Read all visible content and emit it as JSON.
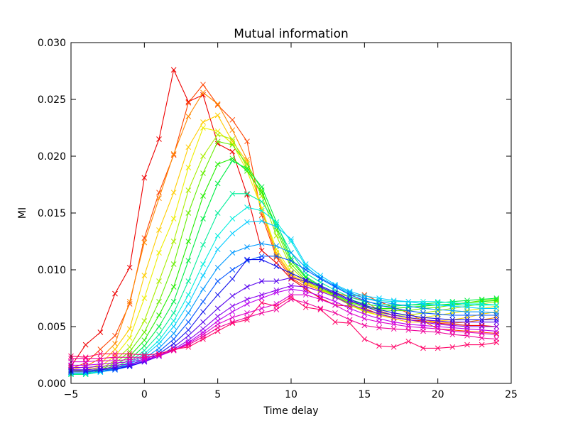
{
  "chart_data": {
    "type": "line",
    "title": "Mutual information",
    "xlabel": "Time delay",
    "ylabel": "MI",
    "xlim": [
      -5,
      25
    ],
    "ylim": [
      0,
      0.03
    ],
    "xticks": [
      -5,
      0,
      5,
      10,
      15,
      20,
      25
    ],
    "xtick_labels": [
      "−5",
      "0",
      "5",
      "10",
      "15",
      "20",
      "25"
    ],
    "yticks": [
      0,
      0.005,
      0.01,
      0.015,
      0.02,
      0.025,
      0.03
    ],
    "ytick_labels": [
      "0.000",
      "0.005",
      "0.010",
      "0.015",
      "0.020",
      "0.025",
      "0.030"
    ],
    "grid": false,
    "marker": "x",
    "x": [
      -5,
      -4,
      -3,
      -2,
      -1,
      0,
      1,
      2,
      3,
      4,
      5,
      6,
      7,
      8,
      9,
      10,
      11,
      12,
      13,
      14,
      15,
      16,
      17,
      18,
      19,
      20,
      21,
      22,
      23,
      24
    ],
    "series": [
      {
        "color": "#ee0000",
        "values": [
          0.0015,
          0.0034,
          0.0045,
          0.0079,
          0.0102,
          0.0181,
          0.0215,
          0.0276,
          0.0248,
          0.0254,
          0.0211,
          0.0204,
          0.0166,
          0.0117,
          0.0106,
          0.0092,
          0.0083,
          0.0075,
          0.0069,
          0.0068,
          0.0066,
          0.0061,
          0.0058,
          0.0056,
          0.0055,
          0.0053,
          0.0052,
          0.0051,
          0.0051,
          0.005
        ]
      },
      {
        "color": "#ff4400",
        "values": [
          0.0013,
          0.0018,
          0.003,
          0.0042,
          0.007,
          0.0128,
          0.0168,
          0.0201,
          0.0247,
          0.0263,
          0.0245,
          0.0232,
          0.0213,
          0.0148,
          0.0111,
          0.0093,
          0.0085,
          0.0081,
          0.0079,
          0.0077,
          0.0078,
          0.0072,
          0.0067,
          0.0062,
          0.0055,
          0.0048,
          0.0047,
          0.0046,
          0.0045,
          0.0044
        ]
      },
      {
        "color": "#ff8800",
        "values": [
          0.0012,
          0.0015,
          0.0022,
          0.0035,
          0.0072,
          0.0124,
          0.0163,
          0.0202,
          0.0235,
          0.0256,
          0.0246,
          0.0223,
          0.0197,
          0.0152,
          0.0113,
          0.0095,
          0.0087,
          0.0082,
          0.008,
          0.0076,
          0.0073,
          0.0064,
          0.006,
          0.0058,
          0.0056,
          0.0054,
          0.0053,
          0.0054,
          0.0056,
          0.0058
        ]
      },
      {
        "color": "#ffcc00",
        "values": [
          0.0011,
          0.0012,
          0.0017,
          0.003,
          0.0048,
          0.0095,
          0.0135,
          0.0168,
          0.0208,
          0.023,
          0.0236,
          0.0213,
          0.0195,
          0.0154,
          0.0115,
          0.0096,
          0.0088,
          0.0082,
          0.0077,
          0.007,
          0.0064,
          0.006,
          0.0057,
          0.0054,
          0.0054,
          0.0055,
          0.0056,
          0.0058,
          0.0061,
          0.0063
        ]
      },
      {
        "color": "#eeee00",
        "values": [
          0.001,
          0.0011,
          0.0015,
          0.0024,
          0.004,
          0.0075,
          0.0115,
          0.0145,
          0.019,
          0.0225,
          0.0222,
          0.0211,
          0.0187,
          0.0154,
          0.0118,
          0.0098,
          0.0089,
          0.0083,
          0.0077,
          0.0069,
          0.0063,
          0.006,
          0.0058,
          0.0057,
          0.0058,
          0.006,
          0.0062,
          0.0064,
          0.0066,
          0.0068
        ]
      },
      {
        "color": "#aaee00",
        "values": [
          0.001,
          0.001,
          0.0013,
          0.002,
          0.0032,
          0.0055,
          0.009,
          0.0125,
          0.017,
          0.02,
          0.0219,
          0.0215,
          0.019,
          0.0165,
          0.013,
          0.0102,
          0.009,
          0.0083,
          0.0076,
          0.0069,
          0.0064,
          0.0062,
          0.006,
          0.006,
          0.0062,
          0.0064,
          0.0066,
          0.0068,
          0.007,
          0.0072
        ]
      },
      {
        "color": "#66ee00",
        "values": [
          0.0009,
          0.0009,
          0.0012,
          0.0018,
          0.0028,
          0.0045,
          0.0072,
          0.0105,
          0.015,
          0.0185,
          0.0213,
          0.021,
          0.0193,
          0.017,
          0.0135,
          0.0105,
          0.0091,
          0.0084,
          0.0077,
          0.0071,
          0.0067,
          0.0065,
          0.0064,
          0.0064,
          0.0066,
          0.0067,
          0.0069,
          0.0071,
          0.0073,
          0.0074
        ]
      },
      {
        "color": "#22ee00",
        "values": [
          0.0008,
          0.0008,
          0.0011,
          0.0016,
          0.0024,
          0.0038,
          0.006,
          0.0085,
          0.0125,
          0.0165,
          0.0193,
          0.0198,
          0.0187,
          0.0168,
          0.0138,
          0.0108,
          0.0093,
          0.0085,
          0.0078,
          0.0072,
          0.0068,
          0.0066,
          0.0066,
          0.0067,
          0.0068,
          0.0069,
          0.007,
          0.0071,
          0.0072,
          0.0073
        ]
      },
      {
        "color": "#00ee44",
        "values": [
          0.0008,
          0.0008,
          0.001,
          0.0014,
          0.0021,
          0.0033,
          0.005,
          0.0072,
          0.0108,
          0.0145,
          0.0176,
          0.0196,
          0.0189,
          0.0173,
          0.0142,
          0.011,
          0.0094,
          0.0086,
          0.008,
          0.0074,
          0.007,
          0.0068,
          0.0068,
          0.0069,
          0.007,
          0.0071,
          0.0072,
          0.0073,
          0.0074,
          0.0075
        ]
      },
      {
        "color": "#00ee99",
        "values": [
          0.0008,
          0.0008,
          0.001,
          0.0013,
          0.0019,
          0.0029,
          0.0043,
          0.0062,
          0.009,
          0.0122,
          0.015,
          0.0167,
          0.0167,
          0.016,
          0.014,
          0.0115,
          0.0097,
          0.0089,
          0.0082,
          0.0076,
          0.0072,
          0.007,
          0.0069,
          0.0069,
          0.0069,
          0.0069,
          0.0069,
          0.0069,
          0.0069,
          0.0069
        ]
      },
      {
        "color": "#00eedd",
        "values": [
          0.0009,
          0.0009,
          0.001,
          0.0013,
          0.0018,
          0.0026,
          0.0038,
          0.0055,
          0.0078,
          0.0105,
          0.013,
          0.0145,
          0.0155,
          0.0152,
          0.0142,
          0.0125,
          0.0103,
          0.0092,
          0.0085,
          0.0079,
          0.0075,
          0.0073,
          0.0072,
          0.0072,
          0.0072,
          0.0072,
          0.0071,
          0.007,
          0.007,
          0.0069
        ]
      },
      {
        "color": "#00ccff",
        "values": [
          0.0009,
          0.0009,
          0.001,
          0.0012,
          0.0017,
          0.0024,
          0.0035,
          0.005,
          0.007,
          0.0095,
          0.0118,
          0.0132,
          0.0142,
          0.0143,
          0.0138,
          0.0127,
          0.0105,
          0.0095,
          0.0087,
          0.0081,
          0.0077,
          0.0075,
          0.0073,
          0.0072,
          0.007,
          0.0069,
          0.0068,
          0.0067,
          0.0066,
          0.0066
        ]
      },
      {
        "color": "#0099ff",
        "values": [
          0.001,
          0.001,
          0.0011,
          0.0012,
          0.0016,
          0.0022,
          0.0031,
          0.0044,
          0.0062,
          0.0083,
          0.0102,
          0.0115,
          0.012,
          0.0123,
          0.0121,
          0.0115,
          0.0102,
          0.0093,
          0.0086,
          0.008,
          0.0075,
          0.0072,
          0.007,
          0.0068,
          0.0066,
          0.0065,
          0.0064,
          0.0063,
          0.0063,
          0.0062
        ]
      },
      {
        "color": "#0055ff",
        "values": [
          0.001,
          0.001,
          0.0011,
          0.0012,
          0.0015,
          0.002,
          0.0028,
          0.0039,
          0.0054,
          0.0072,
          0.009,
          0.01,
          0.0108,
          0.0112,
          0.0112,
          0.0108,
          0.01,
          0.0092,
          0.0085,
          0.0078,
          0.0073,
          0.0069,
          0.0066,
          0.0064,
          0.0062,
          0.0061,
          0.006,
          0.006,
          0.006,
          0.006
        ]
      },
      {
        "color": "#1111ee",
        "values": [
          0.0011,
          0.0011,
          0.0012,
          0.0013,
          0.0015,
          0.0019,
          0.0026,
          0.0035,
          0.0047,
          0.0063,
          0.0078,
          0.0092,
          0.0109,
          0.0109,
          0.0103,
          0.0097,
          0.0091,
          0.0086,
          0.008,
          0.0074,
          0.0069,
          0.0065,
          0.0062,
          0.006,
          0.0058,
          0.0057,
          0.0056,
          0.0056,
          0.0056,
          0.0056
        ]
      },
      {
        "color": "#5500ee",
        "values": [
          0.0012,
          0.0012,
          0.0013,
          0.0014,
          0.0016,
          0.0019,
          0.0024,
          0.0032,
          0.0042,
          0.0054,
          0.0066,
          0.0077,
          0.0085,
          0.009,
          0.009,
          0.0093,
          0.009,
          0.0085,
          0.0079,
          0.0073,
          0.0068,
          0.0063,
          0.006,
          0.0058,
          0.0056,
          0.0055,
          0.0054,
          0.0054,
          0.0054,
          0.0054
        ]
      },
      {
        "color": "#8800ee",
        "values": [
          0.0014,
          0.0014,
          0.0015,
          0.0016,
          0.0017,
          0.002,
          0.0024,
          0.003,
          0.0038,
          0.0048,
          0.0059,
          0.0068,
          0.0074,
          0.0078,
          0.0082,
          0.0086,
          0.0085,
          0.0081,
          0.0076,
          0.007,
          0.0065,
          0.0061,
          0.0058,
          0.0056,
          0.0054,
          0.0052,
          0.0051,
          0.005,
          0.005,
          0.005
        ]
      },
      {
        "color": "#bb00ee",
        "values": [
          0.0016,
          0.0016,
          0.0017,
          0.0018,
          0.0019,
          0.0021,
          0.0024,
          0.0029,
          0.0036,
          0.0045,
          0.0055,
          0.0063,
          0.007,
          0.0075,
          0.008,
          0.0083,
          0.0081,
          0.0077,
          0.0072,
          0.0066,
          0.0061,
          0.0057,
          0.0054,
          0.0052,
          0.0051,
          0.005,
          0.0049,
          0.0048,
          0.0047,
          0.0046
        ]
      },
      {
        "color": "#dd00cc",
        "values": [
          0.0019,
          0.0019,
          0.002,
          0.002,
          0.0021,
          0.0022,
          0.0025,
          0.0029,
          0.0035,
          0.0043,
          0.0052,
          0.0058,
          0.0062,
          0.0066,
          0.007,
          0.0078,
          0.0078,
          0.0074,
          0.0069,
          0.0062,
          0.0057,
          0.0054,
          0.0052,
          0.005,
          0.0049,
          0.0048,
          0.0046,
          0.0045,
          0.0044,
          0.0043
        ]
      },
      {
        "color": "#ee0099",
        "values": [
          0.0022,
          0.0022,
          0.0022,
          0.0023,
          0.0023,
          0.0023,
          0.0025,
          0.0029,
          0.0034,
          0.0041,
          0.0049,
          0.0054,
          0.0058,
          0.0062,
          0.0065,
          0.0074,
          0.0071,
          0.0066,
          0.0062,
          0.0056,
          0.0051,
          0.0049,
          0.0048,
          0.0047,
          0.0046,
          0.0045,
          0.0043,
          0.0042,
          0.004,
          0.0039
        ]
      },
      {
        "color": "#ff0066",
        "values": [
          0.0024,
          0.0023,
          0.0026,
          0.0026,
          0.0026,
          0.0025,
          0.0026,
          0.003,
          0.0032,
          0.0039,
          0.0046,
          0.0053,
          0.0056,
          0.0071,
          0.0068,
          0.0076,
          0.0067,
          0.0065,
          0.0054,
          0.0053,
          0.0039,
          0.0033,
          0.0032,
          0.0037,
          0.0031,
          0.0031,
          0.0032,
          0.0034,
          0.0034,
          0.0036
        ]
      }
    ]
  }
}
